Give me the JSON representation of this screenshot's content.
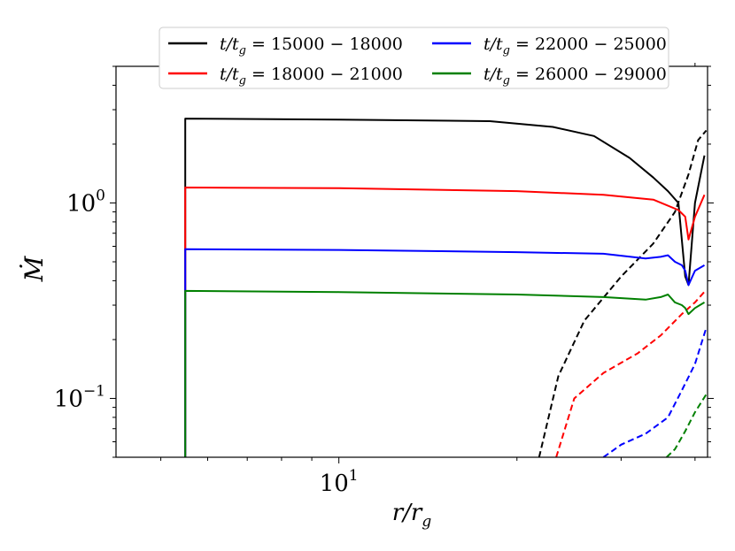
{
  "chart_data": {
    "type": "line",
    "xlabel": "r/r_g",
    "ylabel": "Ṁ",
    "xscale": "log",
    "yscale": "log",
    "xlim": [
      4.2,
      42
    ],
    "ylim": [
      0.05,
      5
    ],
    "x_ticks": [
      {
        "label": "10",
        "exp": "1",
        "value": 10
      }
    ],
    "y_ticks": [
      {
        "label": "10",
        "exp": "0",
        "value": 1
      },
      {
        "label": "10",
        "exp": "−1",
        "value": 0.1
      }
    ],
    "grid": false,
    "legend_position": "top",
    "series": [
      {
        "name": "t/t_g = 15000 − 18000",
        "name_range": "15000 − 18000",
        "color": "#000000",
        "solid": [
          [
            5.5,
            0.05
          ],
          [
            5.5,
            2.7
          ],
          [
            10,
            2.67
          ],
          [
            18,
            2.62
          ],
          [
            23,
            2.45
          ],
          [
            27,
            2.2
          ],
          [
            31,
            1.7
          ],
          [
            34,
            1.35
          ],
          [
            36,
            1.15
          ],
          [
            37.5,
            1.0
          ],
          [
            38.5,
            0.42
          ],
          [
            39,
            0.38
          ],
          [
            40,
            1.0
          ],
          [
            41.5,
            1.75
          ]
        ],
        "dashed": [
          [
            21.8,
            0.05
          ],
          [
            23.5,
            0.13
          ],
          [
            26,
            0.25
          ],
          [
            30,
            0.42
          ],
          [
            34,
            0.62
          ],
          [
            37,
            0.9
          ],
          [
            39,
            1.4
          ],
          [
            40.5,
            2.1
          ],
          [
            41.8,
            2.35
          ]
        ]
      },
      {
        "name": "t/t_g = 18000 − 21000",
        "name_range": "18000 − 21000",
        "color": "#ff0000",
        "solid": [
          [
            5.5,
            0.05
          ],
          [
            5.5,
            1.2
          ],
          [
            10,
            1.19
          ],
          [
            20,
            1.15
          ],
          [
            28,
            1.1
          ],
          [
            34,
            1.04
          ],
          [
            37.5,
            0.92
          ],
          [
            38.5,
            0.85
          ],
          [
            39,
            0.65
          ],
          [
            40,
            0.85
          ],
          [
            41.5,
            1.1
          ]
        ],
        "dashed": [
          [
            23.3,
            0.05
          ],
          [
            25,
            0.1
          ],
          [
            28,
            0.135
          ],
          [
            32,
            0.17
          ],
          [
            35,
            0.21
          ],
          [
            38,
            0.27
          ],
          [
            40,
            0.31
          ],
          [
            41.8,
            0.36
          ]
        ]
      },
      {
        "name": "t/t_g = 22000 − 25000",
        "name_range": "22000 − 25000",
        "color": "#0000ff",
        "solid": [
          [
            5.5,
            0.05
          ],
          [
            5.5,
            0.58
          ],
          [
            10,
            0.575
          ],
          [
            20,
            0.56
          ],
          [
            28,
            0.55
          ],
          [
            33,
            0.52
          ],
          [
            35,
            0.53
          ],
          [
            36,
            0.54
          ],
          [
            37,
            0.5
          ],
          [
            38,
            0.48
          ],
          [
            38.5,
            0.45
          ],
          [
            39,
            0.38
          ],
          [
            40,
            0.45
          ],
          [
            41.5,
            0.48
          ]
        ],
        "dashed": [
          [
            28,
            0.05
          ],
          [
            30,
            0.058
          ],
          [
            33,
            0.066
          ],
          [
            36,
            0.08
          ],
          [
            38,
            0.11
          ],
          [
            40,
            0.15
          ],
          [
            41.8,
            0.23
          ]
        ]
      },
      {
        "name": "t/t_g = 26000 − 29000",
        "name_range": "26000 − 29000",
        "color": "#008000",
        "solid": [
          [
            5.5,
            0.05
          ],
          [
            5.5,
            0.355
          ],
          [
            10,
            0.35
          ],
          [
            20,
            0.34
          ],
          [
            28,
            0.33
          ],
          [
            33,
            0.32
          ],
          [
            35,
            0.33
          ],
          [
            36,
            0.34
          ],
          [
            37,
            0.31
          ],
          [
            38,
            0.3
          ],
          [
            38.5,
            0.29
          ],
          [
            39,
            0.27
          ],
          [
            40,
            0.29
          ],
          [
            41.5,
            0.31
          ]
        ],
        "dashed": [
          [
            35.8,
            0.05
          ],
          [
            37,
            0.055
          ],
          [
            38.5,
            0.068
          ],
          [
            40,
            0.085
          ],
          [
            41.8,
            0.105
          ]
        ]
      }
    ]
  }
}
